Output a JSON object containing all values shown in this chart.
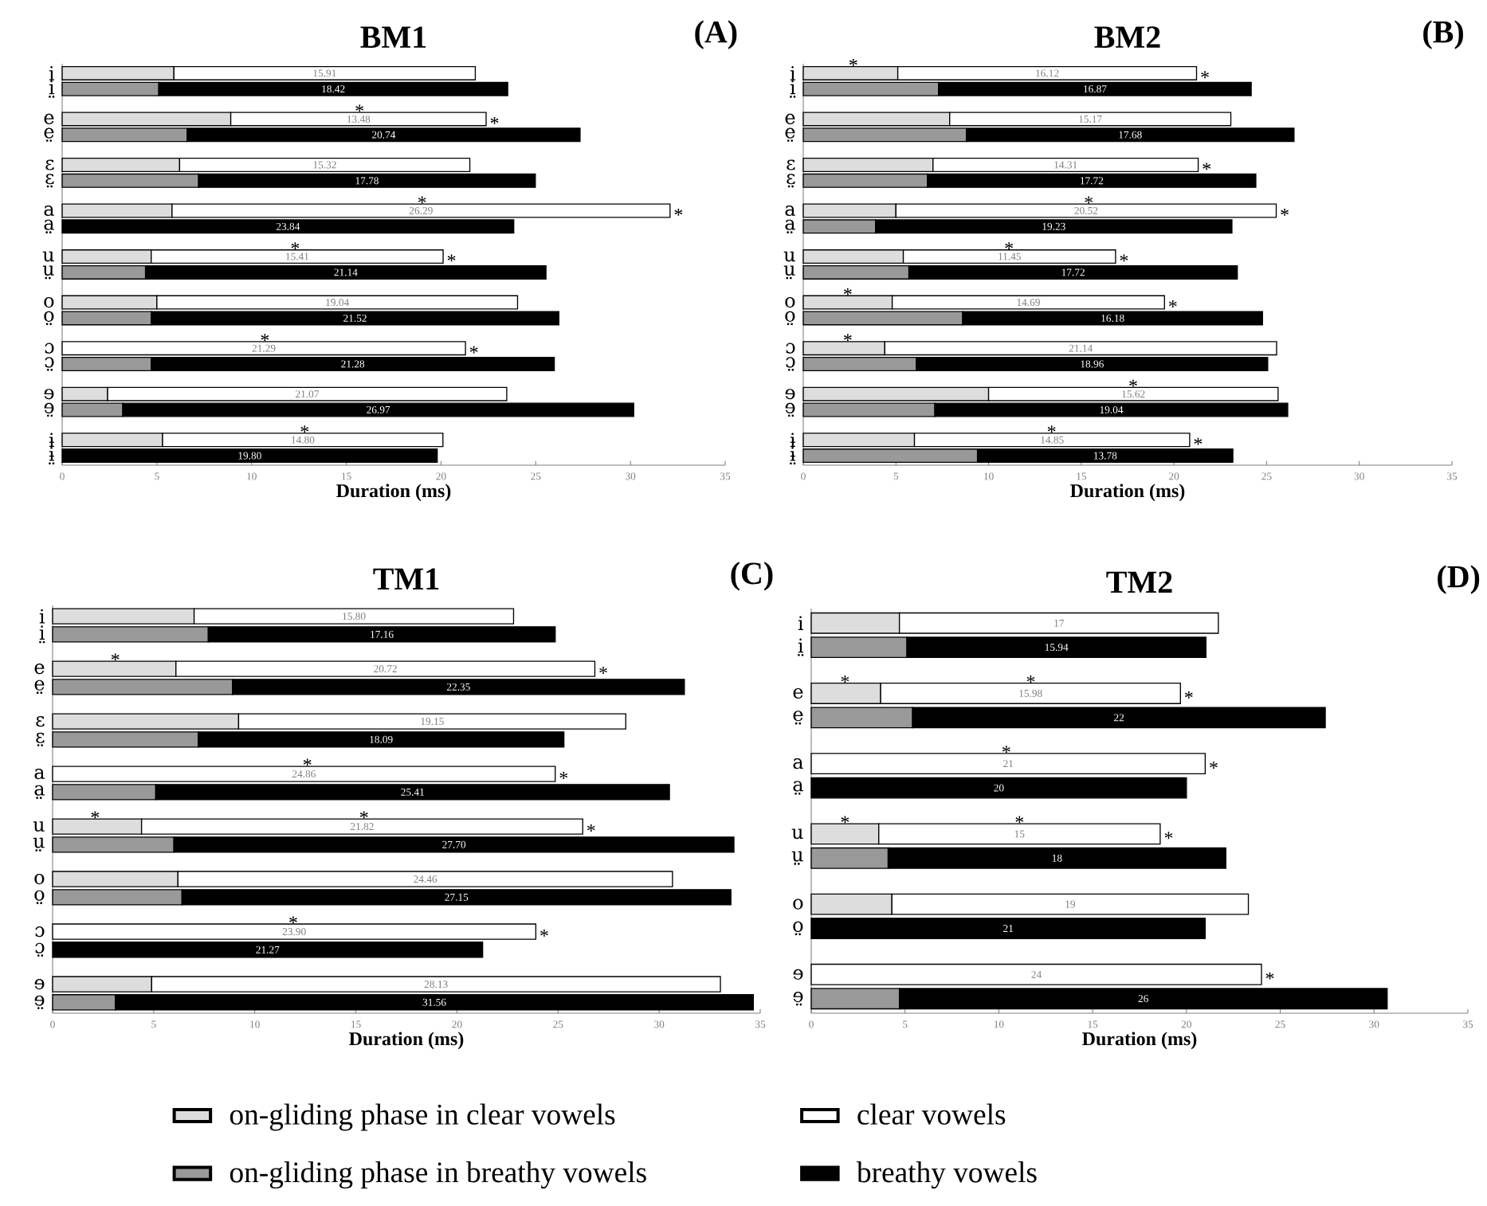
{
  "chart_data": [
    {
      "type": "bar",
      "orientation": "horizontal",
      "stacked": true,
      "title": "BM1",
      "xlabel": "Duration (ms)",
      "xlim": [
        0,
        35
      ],
      "xticks": [
        0,
        5,
        10,
        15,
        20,
        25,
        30,
        35
      ],
      "categories": [
        "i",
        "i̤",
        "e",
        "e̤",
        "ɛ",
        "ɛ̤",
        "a",
        "a̤",
        "u",
        "ṳ",
        "o",
        "o̤",
        "ɔ",
        "ɔ̤",
        "ɘ",
        "ɘ̤",
        "ɨ",
        "ɨ̤"
      ],
      "series": [
        {
          "color": "#dddddd",
          "values": [
            5.9,
            null,
            8.9,
            null,
            6.2,
            null,
            5.8,
            null,
            4.7,
            null,
            5.0,
            null,
            null,
            null,
            2.4,
            null,
            5.3,
            null
          ]
        },
        {
          "color": "#ffffff",
          "values": [
            15.91,
            null,
            13.48,
            null,
            15.32,
            null,
            26.29,
            null,
            15.41,
            null,
            19.04,
            null,
            21.29,
            null,
            21.07,
            null,
            14.8,
            null
          ],
          "value_labels": [
            "15.91",
            null,
            "13.48",
            null,
            "15.32",
            null,
            "26.29",
            null,
            "15.41",
            null,
            "19.04",
            null,
            "21.29",
            null,
            "21.07",
            null,
            "14.80",
            null
          ]
        },
        {
          "color": "#999999",
          "values": [
            null,
            5.1,
            null,
            6.6,
            null,
            7.2,
            null,
            null,
            null,
            4.4,
            null,
            4.7,
            null,
            4.7,
            null,
            3.2,
            null,
            null
          ]
        },
        {
          "color": "#000000",
          "values": [
            null,
            18.42,
            null,
            20.74,
            null,
            17.78,
            null,
            23.84,
            null,
            21.14,
            null,
            21.52,
            null,
            21.28,
            null,
            26.97,
            null,
            19.8
          ],
          "value_labels": [
            null,
            "18.42",
            null,
            "20.74",
            null,
            "17.78",
            null,
            "23.84",
            null,
            "21.14",
            null,
            "21.52",
            null,
            "21.28",
            null,
            "26.97",
            null,
            "19.80"
          ]
        }
      ],
      "annotations": [
        "(A)",
        {
          "text": "*",
          "x": 15.7,
          "y": "e"
        },
        {
          "text": "*",
          "x": 22.38,
          "y": "e"
        },
        {
          "text": "*",
          "x": 19.0,
          "y": "a"
        },
        {
          "text": "*",
          "x": 32.09,
          "y": "a"
        },
        {
          "text": "*",
          "x": 12.3,
          "y": "u"
        },
        {
          "text": "*",
          "x": 20.11,
          "y": "u"
        },
        {
          "text": "*",
          "x": 10.7,
          "y": "ɔ"
        },
        {
          "text": "*",
          "x": 21.29,
          "y": "ɔ"
        },
        {
          "text": "*",
          "x": 12.8,
          "y": "ɨ"
        }
      ]
    },
    {
      "type": "bar",
      "orientation": "horizontal",
      "stacked": true,
      "title": "BM2",
      "xlabel": "Duration (ms)",
      "xlim": [
        0,
        35
      ],
      "xticks": [
        0,
        5,
        10,
        15,
        20,
        25,
        30,
        35
      ],
      "categories": [
        "i",
        "i̤",
        "e",
        "e̤",
        "ɛ",
        "ɛ̤",
        "a",
        "a̤",
        "u",
        "ṳ",
        "o",
        "o̤",
        "ɔ",
        "ɔ̤",
        "ɘ",
        "ɘ̤",
        "ɨ",
        "ɨ̤"
      ],
      "series": [
        {
          "color": "#dddddd",
          "values": [
            5.1,
            null,
            7.9,
            null,
            7.0,
            null,
            5.0,
            null,
            5.4,
            null,
            4.8,
            null,
            4.4,
            null,
            10.0,
            null,
            6.0,
            null
          ]
        },
        {
          "color": "#ffffff",
          "values": [
            16.12,
            null,
            15.17,
            null,
            14.31,
            null,
            20.52,
            null,
            11.45,
            null,
            14.69,
            null,
            21.14,
            null,
            15.62,
            null,
            14.85,
            null
          ],
          "value_labels": [
            "16.12",
            null,
            "15.17",
            null,
            "14.31",
            null,
            "20.52",
            null,
            "11.45",
            null,
            "14.69",
            null,
            "21.14",
            null,
            "15.62",
            null,
            "14.85",
            null
          ]
        },
        {
          "color": "#999999",
          "values": [
            null,
            7.3,
            null,
            8.8,
            null,
            6.7,
            null,
            3.9,
            null,
            5.7,
            null,
            8.6,
            null,
            6.1,
            null,
            7.1,
            null,
            9.4
          ]
        },
        {
          "color": "#000000",
          "values": [
            null,
            16.87,
            null,
            17.68,
            null,
            17.72,
            null,
            19.23,
            null,
            17.72,
            null,
            16.18,
            null,
            18.96,
            null,
            19.04,
            null,
            13.78
          ],
          "value_labels": [
            null,
            "16.87",
            null,
            "17.68",
            null,
            "17.72",
            null,
            "19.23",
            null,
            "17.72",
            null,
            "16.18",
            null,
            "18.96",
            null,
            "19.04",
            null,
            "13.78"
          ]
        }
      ],
      "annotations": [
        "(B)",
        {
          "text": "*",
          "x": 2.7,
          "y": "i"
        },
        {
          "text": "*",
          "x": 21.22,
          "y": "i"
        },
        {
          "text": "*",
          "x": 21.31,
          "y": "ɛ"
        },
        {
          "text": "*",
          "x": 15.4,
          "y": "a"
        },
        {
          "text": "*",
          "x": 25.52,
          "y": "a"
        },
        {
          "text": "*",
          "x": 11.1,
          "y": "u"
        },
        {
          "text": "*",
          "x": 16.85,
          "y": "u"
        },
        {
          "text": "*",
          "x": 2.4,
          "y": "o"
        },
        {
          "text": "*",
          "x": 19.49,
          "y": "o"
        },
        {
          "text": "*",
          "x": 2.4,
          "y": "ɔ"
        },
        {
          "text": "*",
          "x": 17.8,
          "y": "ɘ"
        },
        {
          "text": "*",
          "x": 13.4,
          "y": "ɨ"
        },
        {
          "text": "*",
          "x": 20.85,
          "y": "ɨ"
        }
      ]
    },
    {
      "type": "bar",
      "orientation": "horizontal",
      "stacked": true,
      "title": "TM1",
      "xlabel": "Duration (ms)",
      "xlim": [
        0,
        35
      ],
      "xticks": [
        0,
        5,
        10,
        15,
        20,
        25,
        30,
        35
      ],
      "legend": "bottom",
      "categories": [
        "i",
        "i̤",
        "e",
        "e̤",
        "ɛ",
        "ɛ̤",
        "a",
        "a̤",
        "u",
        "ṳ",
        "o",
        "o̤",
        "ɔ",
        "ɔ̤",
        "ɘ",
        "ɘ̤"
      ],
      "series": [
        {
          "name": "on-gliding phase in clear vowels",
          "color": "#dddddd",
          "values": [
            7.0,
            null,
            6.1,
            null,
            9.2,
            null,
            null,
            null,
            4.4,
            null,
            6.2,
            null,
            null,
            null,
            4.9,
            null
          ]
        },
        {
          "name": "clear vowels",
          "color": "#ffffff",
          "values": [
            15.8,
            null,
            20.72,
            null,
            19.15,
            null,
            24.86,
            null,
            21.82,
            null,
            24.46,
            null,
            23.9,
            null,
            28.13,
            null
          ],
          "value_labels": [
            "15.80",
            null,
            "20.72",
            null,
            "19.15",
            null,
            "24.86",
            null,
            "21.82",
            null,
            "24.46",
            null,
            "23.90",
            null,
            "28.13",
            null
          ]
        },
        {
          "name": "on-gliding phase in breathy vowels",
          "color": "#999999",
          "values": [
            null,
            7.7,
            null,
            8.9,
            null,
            7.2,
            null,
            5.1,
            null,
            6.0,
            null,
            6.4,
            null,
            null,
            null,
            3.1
          ]
        },
        {
          "name": "breathy vowels",
          "color": "#000000",
          "values": [
            null,
            17.16,
            null,
            22.35,
            null,
            18.09,
            null,
            25.41,
            null,
            27.7,
            null,
            27.15,
            null,
            21.27,
            null,
            31.56
          ],
          "value_labels": [
            null,
            "17.16",
            null,
            "22.35",
            null,
            "18.09",
            null,
            "25.41",
            null,
            "27.70",
            null,
            "27.15",
            null,
            "21.27",
            null,
            "31.56"
          ]
        }
      ],
      "annotations": [
        "(C)",
        {
          "text": "*",
          "x": 3.1,
          "y": "e"
        },
        {
          "text": "*",
          "x": 26.82,
          "y": "e"
        },
        {
          "text": "*",
          "x": 12.6,
          "y": "a"
        },
        {
          "text": "*",
          "x": 24.86,
          "y": "a"
        },
        {
          "text": "*",
          "x": 2.1,
          "y": "u"
        },
        {
          "text": "*",
          "x": 15.4,
          "y": "u"
        },
        {
          "text": "*",
          "x": 26.22,
          "y": "u"
        },
        {
          "text": "*",
          "x": 11.9,
          "y": "ɔ"
        },
        {
          "text": "*",
          "x": 23.9,
          "y": "ɔ"
        }
      ]
    },
    {
      "type": "bar",
      "orientation": "horizontal",
      "stacked": true,
      "title": "TM2",
      "xlabel": "Duration (ms)",
      "xlim": [
        0,
        35
      ],
      "xticks": [
        0,
        5,
        10,
        15,
        20,
        25,
        30,
        35
      ],
      "categories": [
        "i",
        "i̤",
        "e",
        "e̤",
        "a",
        "a̤",
        "u",
        "ṳ",
        "o",
        "o̤",
        "ɘ",
        "ɘ̤"
      ],
      "series": [
        {
          "color": "#dddddd",
          "values": [
            4.7,
            null,
            3.7,
            null,
            null,
            null,
            3.6,
            null,
            4.3,
            null,
            null,
            null
          ]
        },
        {
          "color": "#ffffff",
          "values": [
            17,
            null,
            15.98,
            null,
            21,
            null,
            15,
            null,
            19,
            null,
            24,
            null
          ],
          "value_labels": [
            "17",
            null,
            "15.98",
            null,
            "21",
            null,
            "15",
            null,
            "19",
            null,
            "24",
            null
          ]
        },
        {
          "color": "#999999",
          "values": [
            null,
            5.1,
            null,
            5.4,
            null,
            null,
            null,
            4.1,
            null,
            null,
            null,
            4.7
          ]
        },
        {
          "color": "#000000",
          "values": [
            null,
            15.94,
            null,
            22,
            null,
            20,
            null,
            18,
            null,
            21,
            null,
            26
          ],
          "value_labels": [
            null,
            "15.94",
            null,
            "22",
            null,
            "20",
            null,
            "18",
            null,
            "21",
            null,
            "26"
          ]
        }
      ],
      "annotations": [
        "(D)",
        {
          "text": "*",
          "x": 1.8,
          "y": "e"
        },
        {
          "text": "*",
          "x": 11.7,
          "y": "e"
        },
        {
          "text": "*",
          "x": 19.68,
          "y": "e"
        },
        {
          "text": "*",
          "x": 10.4,
          "y": "a"
        },
        {
          "text": "*",
          "x": 21,
          "y": "a"
        },
        {
          "text": "*",
          "x": 1.8,
          "y": "u"
        },
        {
          "text": "*",
          "x": 11.1,
          "y": "u"
        },
        {
          "text": "*",
          "x": 18.6,
          "y": "u"
        },
        {
          "text": "*",
          "x": 24,
          "y": "ɘ"
        }
      ]
    }
  ]
}
